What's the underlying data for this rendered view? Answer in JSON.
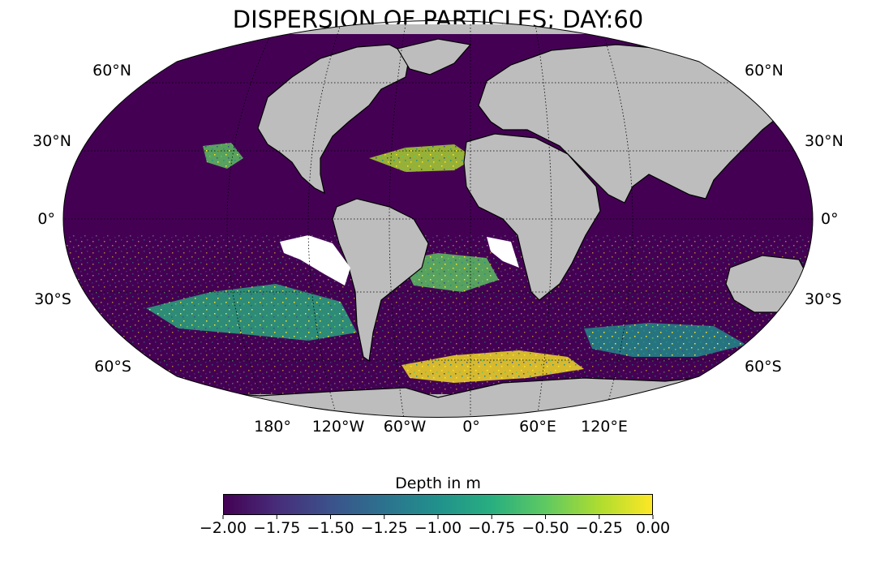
{
  "title": "DISPERSION OF PARTICLES; DAY:60",
  "lat_labels": {
    "left": [
      "60°N",
      "30°N",
      "0°",
      "30°S",
      "60°S"
    ],
    "right": [
      "60°N",
      "30°N",
      "0°",
      "30°S",
      "60°S"
    ]
  },
  "lon_labels": [
    "180°",
    "120°W",
    "60°W",
    "0°",
    "60°E",
    "120°E"
  ],
  "colorbar": {
    "label": "Depth in m",
    "colormap": "viridis",
    "range": [
      -2.0,
      0.0
    ],
    "ticks": [
      "−2.00",
      "−1.75",
      "−1.50",
      "−1.25",
      "−1.00",
      "−0.75",
      "−0.50",
      "−0.25",
      "0.00"
    ]
  },
  "colors": {
    "ocean_background": "#440154",
    "land": "#bdbdbd",
    "coastline": "#000000",
    "colormap_stops": [
      "#440154",
      "#472d7b",
      "#3b528b",
      "#2c728e",
      "#21918c",
      "#28ae80",
      "#5ec962",
      "#addc30",
      "#fde725"
    ]
  },
  "particle_regions": [
    {
      "name": "South Atlantic subpolar band",
      "depth_m": -0.1
    },
    {
      "name": "South Pacific band",
      "depth_m": -0.7
    },
    {
      "name": "Southern Ocean east of 60°E",
      "depth_m": -1.0
    },
    {
      "name": "North Atlantic subtropical patch",
      "depth_m": -0.2
    },
    {
      "name": "South Atlantic gyre",
      "depth_m": -0.4
    },
    {
      "name": "North Pacific patch",
      "depth_m": -0.6
    }
  ]
}
